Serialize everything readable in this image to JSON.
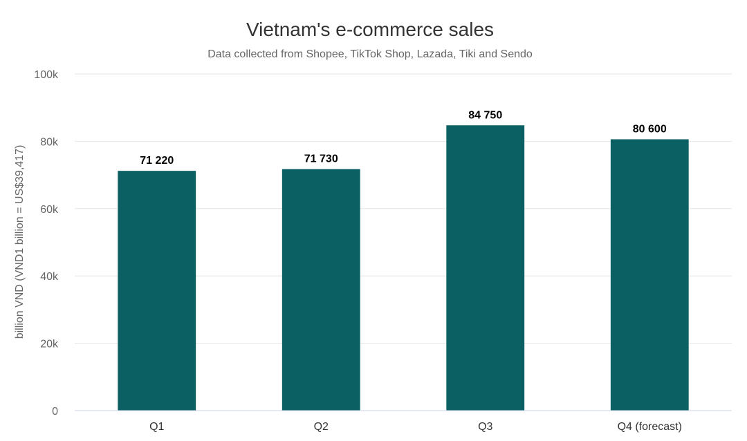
{
  "chart_data": {
    "type": "bar",
    "title": "Vietnam's e-commerce sales",
    "subtitle": "Data collected from Shopee, TikTok Shop, Lazada, Tiki and Sendo",
    "xlabel": "",
    "ylabel": "billion VND (VND1 billion = US$39,417)",
    "categories": [
      "Q1",
      "Q2",
      "Q3",
      "Q4 (forecast)"
    ],
    "values": [
      71220,
      71730,
      84750,
      80600
    ],
    "value_labels": [
      "71 220",
      "71 730",
      "84 750",
      "80 600"
    ],
    "ylim": [
      0,
      100000
    ],
    "yticks": [
      0,
      20000,
      40000,
      60000,
      80000,
      100000
    ],
    "ytick_labels": [
      "0",
      "20k",
      "40k",
      "60k",
      "80k",
      "100k"
    ],
    "grid": true,
    "legend": "none",
    "bar_color": "#0b6063"
  }
}
